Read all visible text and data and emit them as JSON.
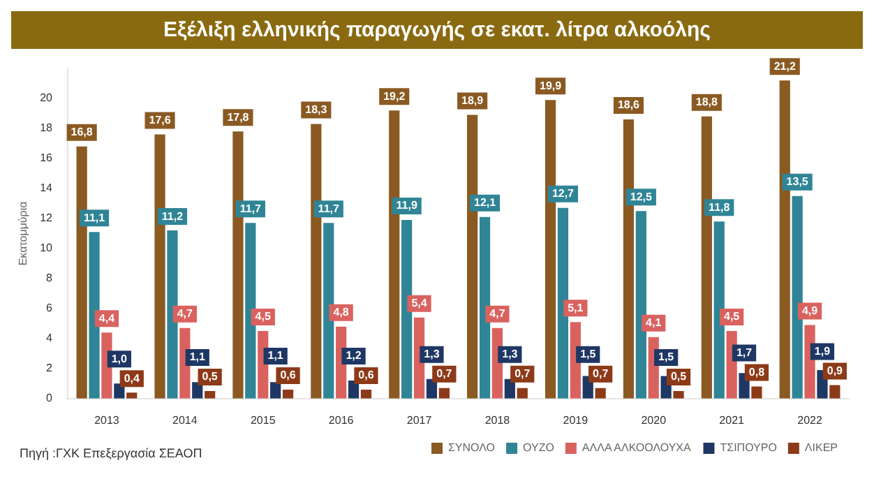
{
  "chart_data": {
    "type": "bar",
    "title": "Εξέλιξη ελληνικής παραγωγής σε εκατ. λίτρα αλκοόλης",
    "ylabel": "Εκατομμύρια",
    "annotations": [
      "Πηγή :ΓΧΚ Επεξεργασία ΣΕΑΟΠ"
    ],
    "categories": [
      "2013",
      "2014",
      "2015",
      "2016",
      "2017",
      "2018",
      "2019",
      "2020",
      "2021",
      "2022"
    ],
    "series": [
      {
        "name": "ΣΥΝΟΛΟ",
        "color": "#8a5a22",
        "values": [
          16.8,
          17.6,
          17.8,
          18.3,
          19.2,
          18.9,
          19.9,
          18.6,
          18.8,
          21.2
        ],
        "value_labels": [
          "16,8",
          "17,6",
          "17,8",
          "18,3",
          "19,2",
          "18,9",
          "19,9",
          "18,6",
          "18,8",
          "21,2"
        ]
      },
      {
        "name": "ΟΥΖΟ",
        "color": "#2f8596",
        "values": [
          11.1,
          11.2,
          11.7,
          11.7,
          11.9,
          12.1,
          12.7,
          12.5,
          11.8,
          13.5
        ],
        "value_labels": [
          "11,1",
          "11,2",
          "11,7",
          "11,7",
          "11,9",
          "12,1",
          "12,7",
          "12,5",
          "11,8",
          "13,5"
        ]
      },
      {
        "name": "ΑΛΛΑ ΑΛΚΟΟΛΟΥΧΑ",
        "color": "#d9625f",
        "values": [
          4.4,
          4.7,
          4.5,
          4.8,
          5.4,
          4.7,
          5.1,
          4.1,
          4.5,
          4.9
        ],
        "value_labels": [
          "4,4",
          "4,7",
          "4,5",
          "4,8",
          "5,4",
          "4,7",
          "5,1",
          "4,1",
          "4,5",
          "4,9"
        ]
      },
      {
        "name": "ΤΣΙΠΟΥΡΟ",
        "color": "#1e3764",
        "values": [
          1.0,
          1.1,
          1.1,
          1.2,
          1.3,
          1.3,
          1.5,
          1.5,
          1.7,
          1.9
        ],
        "value_labels": [
          "1,0",
          "1,1",
          "1,1",
          "1,2",
          "1,3",
          "1,3",
          "1,5",
          "1,5",
          "1,7",
          "1,9"
        ]
      },
      {
        "name": "ΛΙΚΕΡ",
        "color": "#8c3a18",
        "values": [
          0.4,
          0.5,
          0.6,
          0.6,
          0.7,
          0.7,
          0.7,
          0.5,
          0.8,
          0.9
        ],
        "value_labels": [
          "0,4",
          "0,5",
          "0,6",
          "0,6",
          "0,7",
          "0,7",
          "0,7",
          "0,5",
          "0,8",
          "0,9"
        ]
      }
    ],
    "ylim": [
      0,
      22
    ],
    "yticks": [
      0,
      2,
      4,
      6,
      8,
      10,
      12,
      14,
      16,
      18,
      20
    ],
    "grid": false,
    "legend": "bottom"
  }
}
